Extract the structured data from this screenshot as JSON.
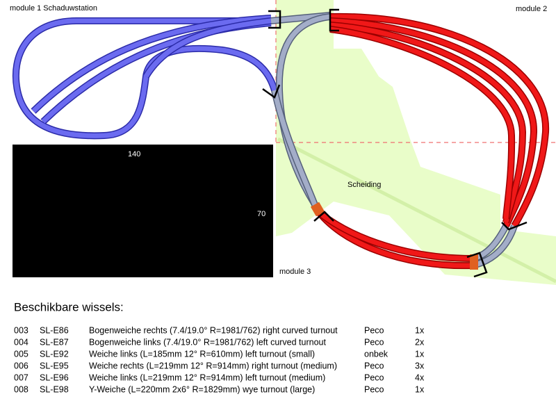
{
  "labels": {
    "module1": "module 1 Schaduwstation",
    "module2": "module 2",
    "module3": "module 3",
    "width": "140",
    "height": "70",
    "divider": "Scheiding"
  },
  "table": {
    "title": "Beschikbare wissels:",
    "rows": [
      [
        "003",
        "SL-E86",
        "Bogenweiche rechts (7.4/19.0° R=1981/762) right curved turnout",
        "Peco",
        "1x"
      ],
      [
        "004",
        "SL-E87",
        "Bogenweiche links (7.4/19.0° R=1981/762)  left curved turnout",
        "Peco",
        "2x"
      ],
      [
        "005",
        "SL-E92",
        "Weiche links  (L=185mm 12° R=610mm)  left turnout (small)",
        "onbek",
        "1x"
      ],
      [
        "006",
        "SL-E95",
        "Weiche rechts  (L=219mm 12° R=914mm)  right turnout (medium)",
        "Peco",
        "3x"
      ],
      [
        "007",
        "SL-E96",
        "Weiche links  (L=219mm 12° R=914mm)  left turnout (medium)",
        "Peco",
        "4x"
      ],
      [
        "008",
        "SL-E98",
        "Y-Weiche  (L=220mm 2x6° R=1829mm)  wye turnout (large)",
        "Peco",
        "1x"
      ]
    ]
  }
}
